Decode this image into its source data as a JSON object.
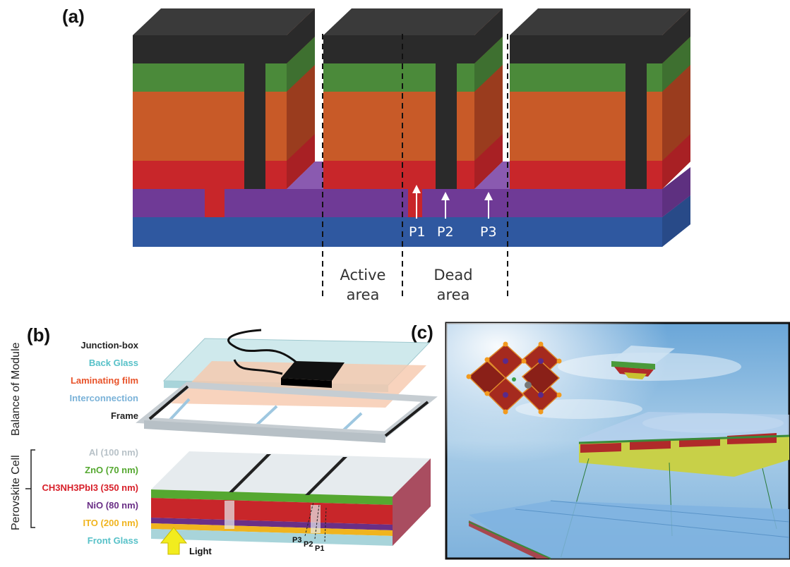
{
  "panel_a": {
    "label": "(a)",
    "arrows": [
      "P1",
      "P2",
      "P3"
    ],
    "regions": {
      "active": [
        "Active",
        "area"
      ],
      "dead": [
        "Dead",
        "area"
      ]
    }
  },
  "panel_b": {
    "label": "(b)",
    "group_balance": "Balance of Module",
    "group_cell": "Perovskite Cell",
    "balance_items": [
      {
        "text": "Junction-box",
        "color": "#222222"
      },
      {
        "text": "Back Glass",
        "color": "#57c1c8"
      },
      {
        "text": "Laminating film",
        "color": "#e8532a"
      },
      {
        "text": "Interconnection",
        "color": "#7ab2d8"
      },
      {
        "text": "Frame",
        "color": "#222222"
      }
    ],
    "cell_items": [
      {
        "text": "Al (100 nm)",
        "color": "#b8c2c8"
      },
      {
        "text": "ZnO (70 nm)",
        "color": "#55a830"
      },
      {
        "text": "CH3NH3PbI3 (350 nm)",
        "color": "#d8202a"
      },
      {
        "text": "NiO (80 nm)",
        "color": "#6a2f86"
      },
      {
        "text": "ITO (200 nm)",
        "color": "#f0b41e"
      },
      {
        "text": "Front Glass",
        "color": "#57c1c8"
      }
    ],
    "light_label": "Light",
    "scribe_labels": [
      "P3",
      "P2",
      "P1"
    ]
  },
  "panel_c": {
    "label": "(c)"
  },
  "colors": {
    "top": "#2a2a2a",
    "green": "#4b8a3a",
    "orange": "#c85a28",
    "red": "#c8262a",
    "purple": "#6f3a96",
    "blue": "#2f58a0"
  }
}
